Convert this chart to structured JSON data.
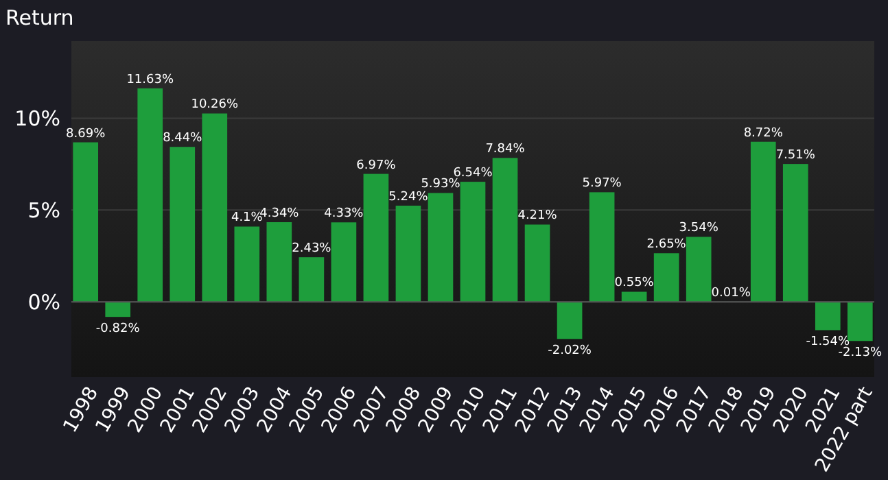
{
  "chart_data": {
    "type": "bar",
    "title": "Return",
    "categories": [
      "1998",
      "1999",
      "2000",
      "2001",
      "2002",
      "2003",
      "2004",
      "2005",
      "2006",
      "2007",
      "2008",
      "2009",
      "2010",
      "2011",
      "2012",
      "2013",
      "2014",
      "2015",
      "2016",
      "2017",
      "2018",
      "2019",
      "2020",
      "2021",
      "2022 part"
    ],
    "values": [
      8.69,
      -0.82,
      11.63,
      8.44,
      10.26,
      4.1,
      4.34,
      2.43,
      4.33,
      6.97,
      5.24,
      5.93,
      6.54,
      7.84,
      4.21,
      -2.02,
      5.97,
      0.55,
      2.65,
      3.54,
      0.01,
      8.72,
      7.51,
      -1.54,
      -2.13
    ],
    "value_labels": [
      "8.69%",
      "-0.82%",
      "11.63%",
      "8.44%",
      "10.26%",
      "4.1%",
      "4.34%",
      "2.43%",
      "4.33%",
      "6.97%",
      "5.24%",
      "5.93%",
      "6.54%",
      "7.84%",
      "4.21%",
      "-2.02%",
      "5.97%",
      "0.55%",
      "2.65%",
      "3.54%",
      "0.01%",
      "8.72%",
      "7.51%",
      "-1.54%",
      "-2.13%"
    ],
    "color": "#1e9e3c",
    "ylim": [
      -4.1,
      14.2
    ],
    "yticks": [
      {
        "value": 0,
        "label": "0%"
      },
      {
        "value": 5,
        "label": "5%"
      },
      {
        "value": 10,
        "label": "10%"
      }
    ],
    "grid": "y"
  }
}
